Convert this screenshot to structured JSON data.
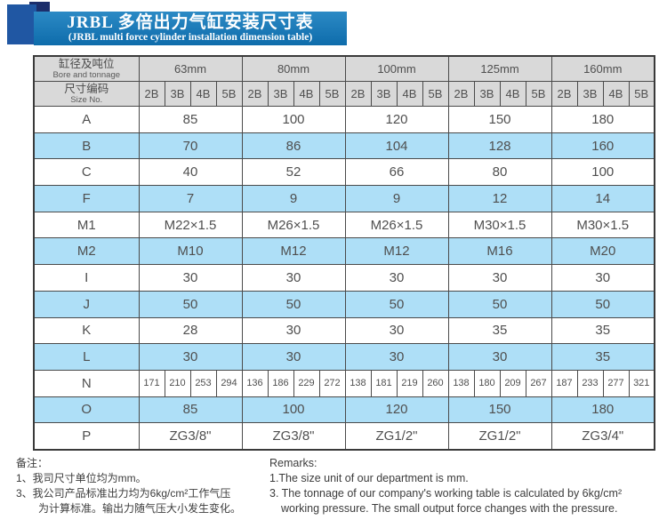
{
  "title": {
    "zh": "JRBL 多倍出力气缸安装尺寸表",
    "en": "(JRBL multi force cylinder installation dimension table)"
  },
  "table": {
    "corner": {
      "zh": "缸径及吨位",
      "en": "Bore and tonnage"
    },
    "size_no": {
      "zh": "尺寸编码",
      "en": "Size No."
    },
    "bores": [
      "63mm",
      "80mm",
      "100mm",
      "125mm",
      "160mm"
    ],
    "size_codes": [
      "2B",
      "3B",
      "4B",
      "5B"
    ],
    "rows": [
      {
        "label": "A",
        "values": [
          "85",
          "100",
          "120",
          "150",
          "180"
        ]
      },
      {
        "label": "B",
        "values": [
          "70",
          "86",
          "104",
          "128",
          "160"
        ]
      },
      {
        "label": "C",
        "values": [
          "40",
          "52",
          "66",
          "80",
          "100"
        ]
      },
      {
        "label": "F",
        "values": [
          "7",
          "9",
          "9",
          "12",
          "14"
        ]
      },
      {
        "label": "M1",
        "values": [
          "M22×1.5",
          "M26×1.5",
          "M26×1.5",
          "M30×1.5",
          "M30×1.5"
        ]
      },
      {
        "label": "M2",
        "values": [
          "M10",
          "M12",
          "M12",
          "M16",
          "M20"
        ]
      },
      {
        "label": "I",
        "values": [
          "30",
          "30",
          "30",
          "30",
          "30"
        ]
      },
      {
        "label": "J",
        "values": [
          "50",
          "50",
          "50",
          "50",
          "50"
        ]
      },
      {
        "label": "K",
        "values": [
          "28",
          "30",
          "30",
          "35",
          "35"
        ]
      },
      {
        "label": "L",
        "values": [
          "30",
          "30",
          "30",
          "30",
          "35"
        ]
      },
      {
        "label": "N",
        "values": [
          [
            "171",
            "210",
            "253",
            "294"
          ],
          [
            "136",
            "186",
            "229",
            "272"
          ],
          [
            "138",
            "181",
            "219",
            "260"
          ],
          [
            "138",
            "180",
            "209",
            "267"
          ],
          [
            "187",
            "233",
            "277",
            "321"
          ]
        ]
      },
      {
        "label": "O",
        "values": [
          "85",
          "100",
          "120",
          "150",
          "180"
        ]
      },
      {
        "label": "P",
        "values": [
          "ZG3/8\"",
          "ZG3/8\"",
          "ZG1/2\"",
          "ZG1/2\"",
          "ZG3/4\""
        ]
      }
    ]
  },
  "notes_zh": {
    "title": "备注：",
    "line1": "1、我司尺寸单位均为mm。",
    "line2": "3、我公司产品标准出力均为6kg/cm²工作气压",
    "line3": "为计算标准。输出力随气压大小发生变化。"
  },
  "notes_en": {
    "title": "Remarks:",
    "line1": "1.The size unit of our department is mm.",
    "line2": "3. The tonnage of our company's working table is calculated by 6kg/cm²",
    "line3": "working pressure. The small output force changes with the pressure."
  },
  "colors": {
    "banner_blue": "#1478bc",
    "square_navy": "#1c2e6b",
    "square_blue": "#2057a3",
    "header_gray": "#d9d9d9",
    "row_blue": "#aedff7",
    "border": "#4a4a4a",
    "text": "#4f4f4f"
  }
}
